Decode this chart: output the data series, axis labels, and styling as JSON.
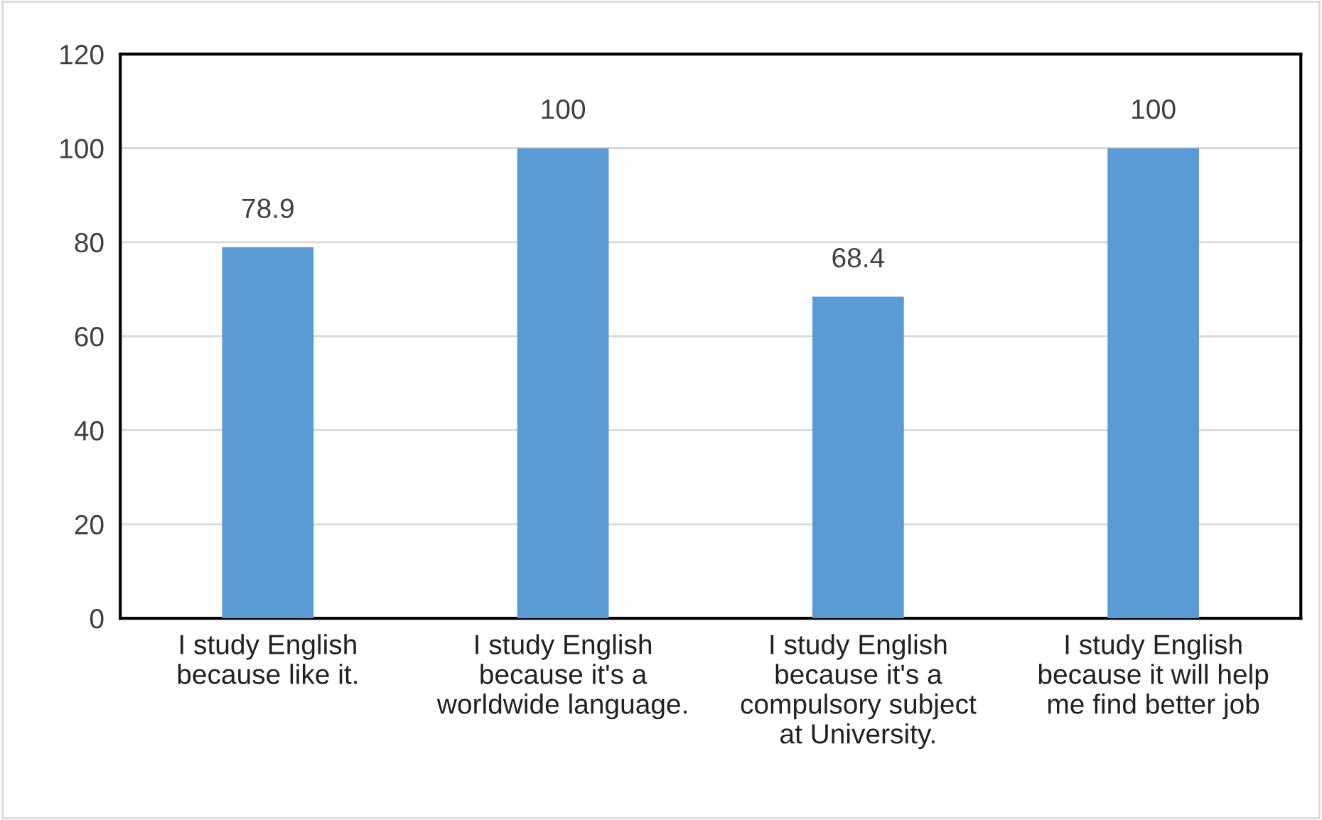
{
  "chart_data": {
    "type": "bar",
    "categories": [
      "I study English\nbecause like it.",
      "I study English\nbecause it's a\nworldwide language.",
      "I study English\nbecause it's a\ncompulsory subject\nat University.",
      "I study English\nbecause it will help\nme find better job"
    ],
    "values": [
      78.9,
      100,
      68.4,
      100
    ],
    "color": "#5b9bd5",
    "ylim": [
      0,
      120
    ],
    "yticks": [
      0,
      20,
      40,
      60,
      80,
      100,
      120
    ],
    "grid": "y",
    "data_labels": true,
    "legend": false
  }
}
